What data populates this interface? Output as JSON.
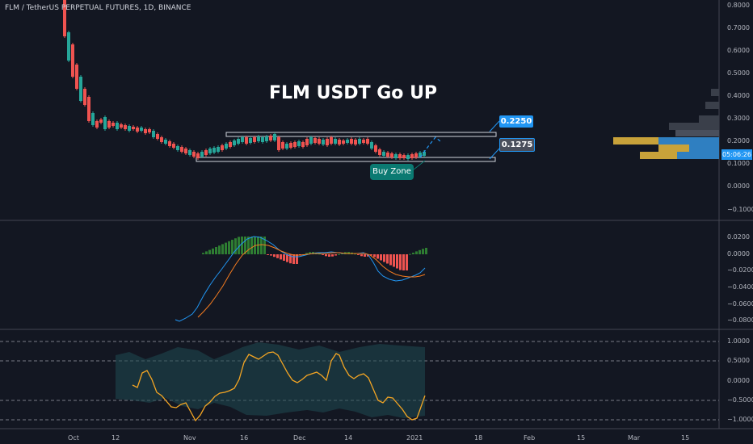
{
  "chart": {
    "symbol_title": "FLM / TetherUS PERPETUAL FUTURES, 1D, BINANCE",
    "headline": "FLM USDT Go UP",
    "annotations": {
      "upper_price": "0.2250",
      "lower_price": "0.1275",
      "zone_label": "Buy Zone"
    },
    "clock": "05:06:26",
    "colors": {
      "up": "#26a69a",
      "down": "#ef5350",
      "accent": "#2196f3",
      "background": "#131722",
      "signal": "#f5a623"
    }
  },
  "axes": {
    "price": [
      "0.8000",
      "0.7000",
      "0.6000",
      "0.5000",
      "0.4000",
      "0.3000",
      "0.2000",
      "0.1000",
      "0.0000",
      "−0.1000"
    ],
    "macd": [
      "0.0200",
      "0.0000",
      "−0.0200",
      "−0.0400",
      "−0.0600",
      "−0.0800"
    ],
    "oscillator": [
      "1.0000",
      "0.5000",
      "0.0000",
      "−0.5000",
      "−1.0000"
    ],
    "time": [
      "Oct",
      "12",
      "Nov",
      "16",
      "Dec",
      "14",
      "2021",
      "18",
      "Feb",
      "15",
      "Mar",
      "15"
    ]
  }
}
